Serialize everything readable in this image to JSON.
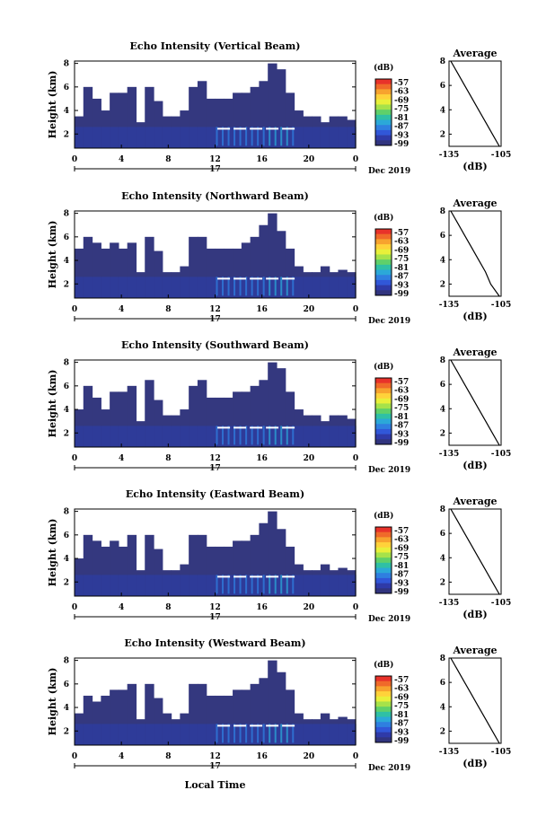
{
  "date_label": "Dec 2019",
  "day_label": "17",
  "x_axis_title": "Local Time",
  "colorbar": {
    "unit": "(dB)",
    "ticks": [
      "-57",
      "-63",
      "-69",
      "-75",
      "-81",
      "-87",
      "-93",
      "-99"
    ],
    "colors": [
      "#e8322a",
      "#f06a2a",
      "#f7a32e",
      "#ffd23a",
      "#e8f03a",
      "#a6e24a",
      "#5fd06a",
      "#2fc0a5",
      "#2ba8d8",
      "#2f7fe0",
      "#3157d8",
      "#2f3aa8",
      "#31347e"
    ]
  },
  "chart_data": [
    {
      "type": "heatmap",
      "title": "Echo Intensity (Vertical Beam)",
      "ylabel": "Height (km)",
      "x_ticks": [
        "0",
        "4",
        "8",
        "12",
        "16",
        "20",
        "0"
      ],
      "y_ticks": [
        "2",
        "4",
        "6",
        "8"
      ],
      "xlim": [
        0,
        24
      ],
      "ylim": [
        0.8,
        8.2
      ],
      "zlim": [
        -99,
        -57
      ],
      "layer_tops_km": [
        3.5,
        6.0,
        5.0,
        4.0,
        5.5,
        5.5,
        6.0,
        3.0,
        6.0,
        4.8,
        3.5,
        3.5,
        4.0,
        6.0,
        6.5,
        5.0,
        5.0,
        5.0,
        5.5,
        5.5,
        6.0,
        6.5,
        8.0,
        7.5,
        5.5,
        4.0,
        3.5,
        3.5,
        3.0,
        3.5,
        3.5,
        3.2
      ],
      "average": {
        "title": "Average",
        "xlabel": "(dB)",
        "x_ticks": [
          "-135",
          "-105"
        ],
        "y_ticks": [
          "2",
          "4",
          "6",
          "8"
        ],
        "xlim": [
          -135,
          -105
        ],
        "ylim": [
          1,
          8
        ],
        "heights_km": [
          1,
          2,
          3,
          4,
          5,
          6,
          7,
          8
        ],
        "values_db": [
          -106,
          -110,
          -114,
          -118,
          -122,
          -126,
          -130,
          -134
        ]
      }
    },
    {
      "type": "heatmap",
      "title": "Echo Intensity (Northward Beam)",
      "ylabel": "Height (km)",
      "x_ticks": [
        "0",
        "4",
        "8",
        "12",
        "16",
        "20",
        "0"
      ],
      "y_ticks": [
        "2",
        "4",
        "6",
        "8"
      ],
      "xlim": [
        0,
        24
      ],
      "ylim": [
        0.8,
        8.2
      ],
      "zlim": [
        -99,
        -57
      ],
      "layer_tops_km": [
        5.0,
        6.0,
        5.5,
        5.0,
        5.5,
        5.0,
        5.5,
        3.0,
        6.0,
        4.8,
        3.0,
        3.0,
        3.5,
        6.0,
        6.0,
        5.0,
        5.0,
        5.0,
        5.0,
        5.5,
        6.0,
        7.0,
        8.0,
        6.5,
        5.0,
        3.5,
        3.0,
        3.0,
        3.5,
        3.0,
        3.2,
        3.0
      ],
      "average": {
        "title": "Average",
        "xlabel": "(dB)",
        "x_ticks": [
          "-135",
          "-105"
        ],
        "y_ticks": [
          "2",
          "4",
          "6",
          "8"
        ],
        "xlim": [
          -135,
          -105
        ],
        "ylim": [
          1,
          8
        ],
        "heights_km": [
          1,
          2,
          3,
          4,
          5,
          6,
          7,
          8
        ],
        "values_db": [
          -106,
          -111,
          -114,
          -118,
          -122,
          -126,
          -130,
          -134
        ]
      }
    },
    {
      "type": "heatmap",
      "title": "Echo Intensity (Southward Beam)",
      "ylabel": "Height (km)",
      "x_ticks": [
        "0",
        "4",
        "8",
        "12",
        "16",
        "20",
        "0"
      ],
      "y_ticks": [
        "2",
        "4",
        "6",
        "8"
      ],
      "xlim": [
        0,
        24
      ],
      "ylim": [
        0.8,
        8.2
      ],
      "zlim": [
        -99,
        -57
      ],
      "layer_tops_km": [
        4.0,
        6.0,
        5.0,
        4.0,
        5.5,
        5.5,
        6.0,
        3.0,
        6.5,
        4.8,
        3.5,
        3.5,
        4.0,
        6.0,
        6.5,
        5.0,
        5.0,
        5.0,
        5.5,
        5.5,
        6.0,
        6.5,
        8.0,
        7.5,
        5.5,
        4.0,
        3.5,
        3.5,
        3.0,
        3.5,
        3.5,
        3.2
      ],
      "average": {
        "title": "Average",
        "xlabel": "(dB)",
        "x_ticks": [
          "-135",
          "-105"
        ],
        "y_ticks": [
          "2",
          "4",
          "6",
          "8"
        ],
        "xlim": [
          -135,
          -105
        ],
        "ylim": [
          1,
          8
        ],
        "heights_km": [
          1,
          2,
          3,
          4,
          5,
          6,
          7,
          8
        ],
        "values_db": [
          -106,
          -110,
          -114,
          -118,
          -122,
          -126,
          -130,
          -134
        ]
      }
    },
    {
      "type": "heatmap",
      "title": "Echo Intensity (Eastward Beam)",
      "ylabel": "Height (km)",
      "x_ticks": [
        "0",
        "4",
        "8",
        "12",
        "16",
        "20",
        "0"
      ],
      "y_ticks": [
        "2",
        "4",
        "6",
        "8"
      ],
      "xlim": [
        0,
        24
      ],
      "ylim": [
        0.8,
        8.2
      ],
      "zlim": [
        -99,
        -57
      ],
      "layer_tops_km": [
        4.0,
        6.0,
        5.5,
        5.0,
        5.5,
        5.0,
        6.0,
        3.0,
        6.0,
        4.8,
        3.0,
        3.0,
        3.5,
        6.0,
        6.0,
        5.0,
        5.0,
        5.0,
        5.5,
        5.5,
        6.0,
        7.0,
        8.0,
        6.5,
        5.0,
        3.5,
        3.0,
        3.0,
        3.5,
        3.0,
        3.2,
        3.0
      ],
      "average": {
        "title": "Average",
        "xlabel": "(dB)",
        "x_ticks": [
          "-135",
          "-105"
        ],
        "y_ticks": [
          "2",
          "4",
          "6",
          "8"
        ],
        "xlim": [
          -135,
          -105
        ],
        "ylim": [
          1,
          8
        ],
        "heights_km": [
          1,
          2,
          3,
          4,
          5,
          6,
          7,
          8
        ],
        "values_db": [
          -106,
          -110,
          -114,
          -118,
          -122,
          -126,
          -130,
          -134
        ]
      }
    },
    {
      "type": "heatmap",
      "title": "Echo Intensity (Westward Beam)",
      "ylabel": "Height (km)",
      "x_ticks": [
        "0",
        "4",
        "8",
        "12",
        "16",
        "20",
        "0"
      ],
      "y_ticks": [
        "2",
        "4",
        "6",
        "8"
      ],
      "xlim": [
        0,
        24
      ],
      "ylim": [
        0.8,
        8.2
      ],
      "zlim": [
        -99,
        -57
      ],
      "layer_tops_km": [
        3.5,
        5.0,
        4.5,
        5.0,
        5.5,
        5.5,
        6.0,
        3.0,
        6.0,
        4.8,
        3.5,
        3.0,
        3.5,
        6.0,
        6.0,
        5.0,
        5.0,
        5.0,
        5.5,
        5.5,
        6.0,
        6.5,
        8.0,
        7.0,
        5.5,
        3.5,
        3.0,
        3.0,
        3.5,
        3.0,
        3.2,
        3.0
      ],
      "average": {
        "title": "Average",
        "xlabel": "(dB)",
        "x_ticks": [
          "-135",
          "-105"
        ],
        "y_ticks": [
          "2",
          "4",
          "6",
          "8"
        ],
        "xlim": [
          -135,
          -105
        ],
        "ylim": [
          1,
          8
        ],
        "heights_km": [
          1,
          2,
          3,
          4,
          5,
          6,
          7,
          8
        ],
        "values_db": [
          -106,
          -110,
          -114,
          -118,
          -122,
          -126,
          -130,
          -134
        ]
      }
    }
  ]
}
